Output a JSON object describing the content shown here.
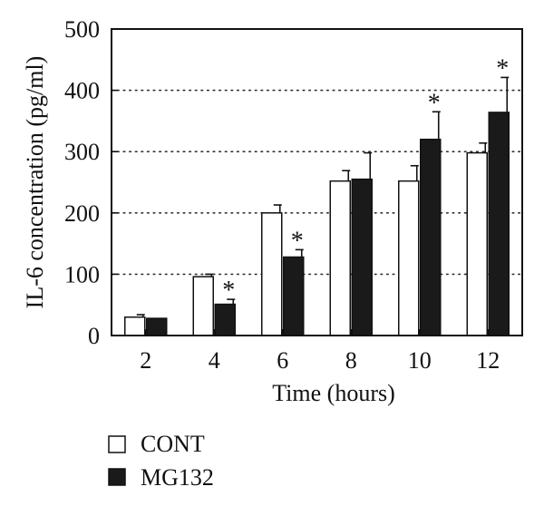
{
  "chart_data": {
    "type": "bar",
    "xlabel": "Time (hours)",
    "ylabel": "IL-6 concentration (pg/ml)",
    "ylim": [
      0,
      500
    ],
    "yticks": [
      "0",
      "100",
      "200",
      "300",
      "400",
      "500"
    ],
    "grid": "dotted horizontal at 100, 200, 300, 400",
    "legend_placement": "bottom-left, below chart",
    "categories": [
      "2",
      "4",
      "6",
      "8",
      "10",
      "12"
    ],
    "series": [
      {
        "name": "CONT",
        "color": "#ffffff",
        "values": [
          30,
          96,
          200,
          252,
          252,
          298
        ],
        "errors": [
          4,
          4,
          13,
          17,
          25,
          16
        ],
        "significant": [
          false,
          false,
          false,
          false,
          false,
          false
        ]
      },
      {
        "name": "MG132",
        "color": "#1a1a1a",
        "values": [
          28,
          51,
          128,
          255,
          320,
          364
        ],
        "errors": [
          0,
          8,
          12,
          43,
          45,
          57
        ],
        "significant": [
          false,
          true,
          true,
          false,
          true,
          true
        ]
      }
    ],
    "significance_marker": "*"
  }
}
